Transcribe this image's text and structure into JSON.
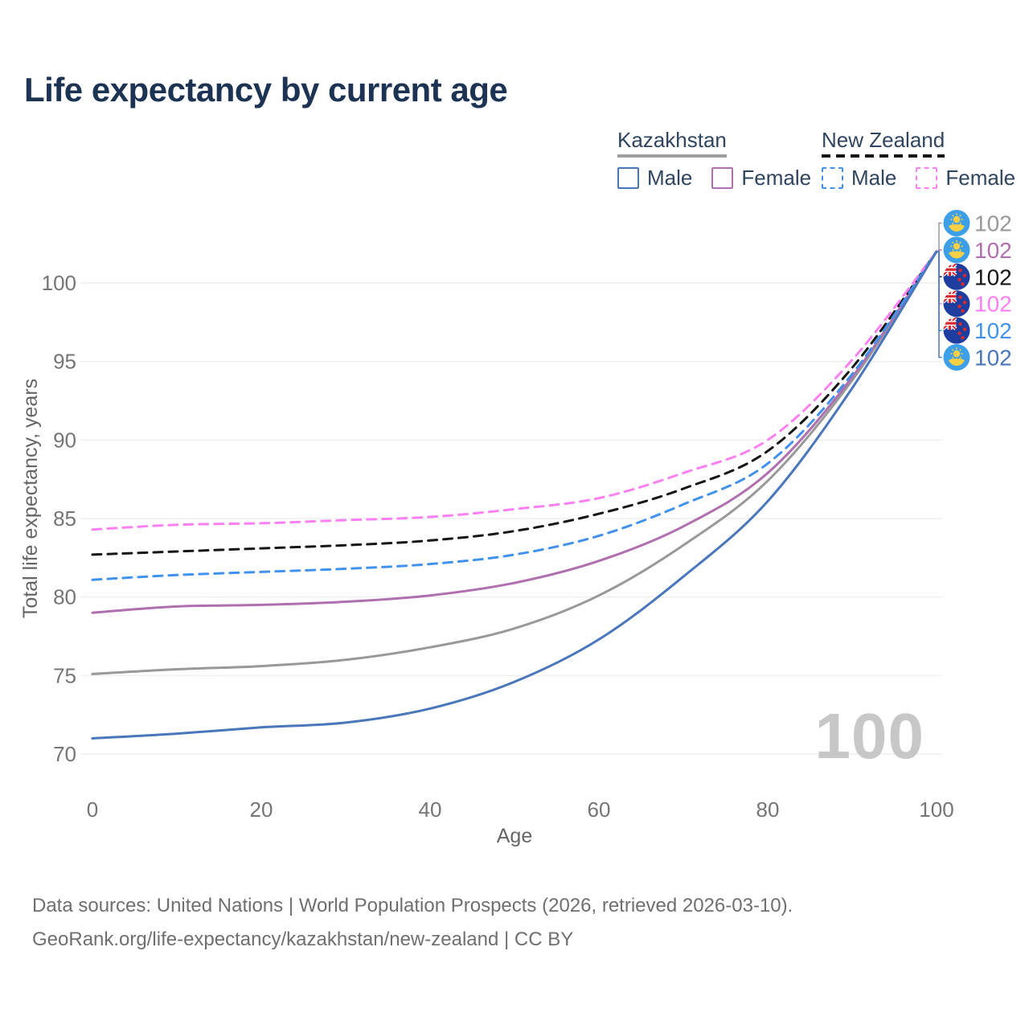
{
  "title": "Life expectancy by current age",
  "watermark": "100",
  "legend": {
    "groups": [
      {
        "country": "Kazakhstan",
        "line_style": "solid",
        "rule_color": "#9e9e9e",
        "items": [
          {
            "label": "Male",
            "color": "#4a77bb"
          },
          {
            "label": "Female",
            "color": "#b06fae"
          }
        ]
      },
      {
        "country": "New Zealand",
        "line_style": "dashed",
        "rule_color": "#161616",
        "items": [
          {
            "label": "Male",
            "color": "#4292ec"
          },
          {
            "label": "Female",
            "color": "#fb80f1"
          }
        ]
      }
    ]
  },
  "footer": {
    "line1": "Data sources: United Nations | World Population Prospects (2026, retrieved 2026-03-10).",
    "line2": "GeoRank.org/life-expectancy/kazakhstan/new-zealand | CC BY"
  },
  "chart_data": {
    "type": "line",
    "title": "Life expectancy by current age",
    "xlabel": "Age",
    "ylabel": "Total life expectancy, years",
    "xlim": [
      0,
      100
    ],
    "ylim": [
      70,
      102
    ],
    "xticks": [
      0,
      20,
      40,
      60,
      80,
      100
    ],
    "yticks": [
      70,
      75,
      80,
      85,
      90,
      95,
      100
    ],
    "grid": "horizontal",
    "legend_position": "top-right",
    "x": [
      0,
      10,
      20,
      30,
      40,
      50,
      60,
      70,
      80,
      90,
      100
    ],
    "series": [
      {
        "name": "Kazakhstan",
        "sex": "Both sexes",
        "country": "kz",
        "color": "#999999",
        "dashed": false,
        "end_label": "102",
        "values": [
          75.1,
          75.4,
          75.6,
          76.0,
          76.8,
          78.0,
          80.1,
          83.3,
          87.4,
          93.8,
          102
        ]
      },
      {
        "name": "Kazakhstan Female",
        "sex": "Female",
        "country": "kz",
        "color": "#b06fae",
        "dashed": false,
        "end_label": "102",
        "values": [
          79.0,
          79.4,
          79.5,
          79.7,
          80.1,
          80.9,
          82.3,
          84.5,
          87.9,
          94.0,
          102
        ]
      },
      {
        "name": "New Zealand",
        "sex": "Both sexes",
        "country": "nz",
        "color": "#161616",
        "dashed": true,
        "end_label": "102",
        "values": [
          82.7,
          82.9,
          83.1,
          83.3,
          83.6,
          84.2,
          85.3,
          86.9,
          89.3,
          94.6,
          102
        ]
      },
      {
        "name": "New Zealand Female",
        "sex": "Female",
        "country": "nz",
        "color": "#fb80f1",
        "dashed": true,
        "end_label": "102",
        "values": [
          84.3,
          84.6,
          84.7,
          84.9,
          85.1,
          85.6,
          86.3,
          87.9,
          90.0,
          95.1,
          102
        ]
      },
      {
        "name": "New Zealand Male",
        "sex": "Male",
        "country": "nz",
        "color": "#4292ec",
        "dashed": true,
        "end_label": "102",
        "values": [
          81.1,
          81.4,
          81.6,
          81.8,
          82.1,
          82.7,
          83.9,
          85.9,
          88.5,
          94.2,
          102
        ]
      },
      {
        "name": "Kazakhstan Male",
        "sex": "Male",
        "country": "kz",
        "color": "#4a77bb",
        "dashed": false,
        "end_label": "102",
        "values": [
          71.0,
          71.3,
          71.7,
          72.0,
          72.9,
          74.6,
          77.3,
          81.3,
          86.1,
          93.3,
          102
        ]
      }
    ]
  }
}
